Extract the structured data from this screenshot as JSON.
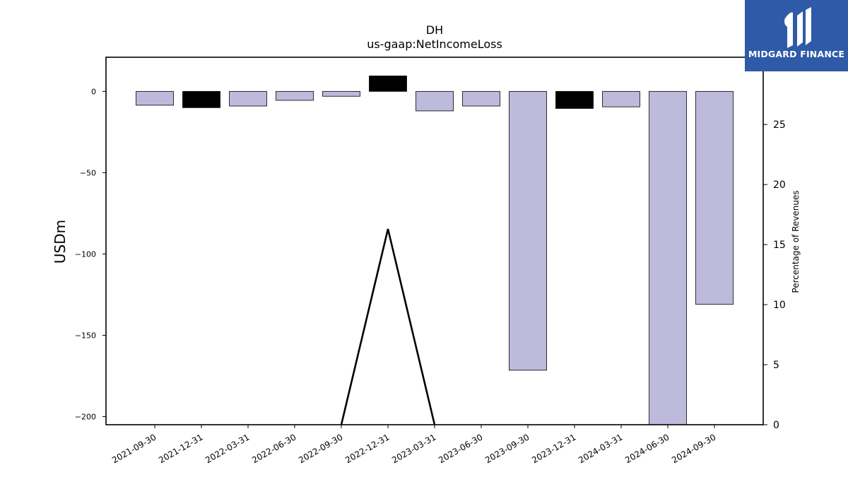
{
  "brand": {
    "name": "MIDGARD FINANCE",
    "colors": {
      "background": "#2e5aa8",
      "foreground": "#ffffff"
    },
    "icon": "midgard-logo-icon"
  },
  "chart_data": {
    "type": "bar",
    "title": "DH",
    "subtitle": "us-gaap:NetIncomeLoss",
    "ylabel": "USDm",
    "y2label": "Percentage of Revenues",
    "ylim": [
      -205,
      21
    ],
    "y2lim": [
      0,
      30.6
    ],
    "yticks": [
      0,
      -50,
      -100,
      -150,
      -200
    ],
    "y2ticks": [
      0,
      5,
      10,
      15,
      20,
      25,
      30
    ],
    "grid": false,
    "categories": [
      "2021-09-30",
      "2021-12-31",
      "2022-03-31",
      "2022-06-30",
      "2022-09-30",
      "2022-12-31",
      "2023-03-31",
      "2023-06-30",
      "2023-09-30",
      "2023-12-31",
      "2024-03-31",
      "2024-06-30",
      "2024-09-30"
    ],
    "series": [
      {
        "values": [
          -8.5,
          -10,
          -9,
          -5.5,
          -3,
          9.5,
          -12,
          -9,
          -171.5,
          -10.5,
          -9.5,
          -206,
          -131
        ],
        "fill_colors": [
          "#bebadc",
          "#000000",
          "#bebadc",
          "#bebadc",
          "#bebadc",
          "#000000",
          "#bebadc",
          "#bebadc",
          "#bebadc",
          "#000000",
          "#bebadc",
          "#bebadc",
          "#bebadc"
        ]
      },
      {
        "axis": "secondary",
        "type": "line",
        "color": "#000000",
        "x": [
          "2022-09-30",
          "2022-12-31",
          "2023-03-31"
        ],
        "values": [
          0,
          16.3,
          0
        ]
      }
    ]
  }
}
